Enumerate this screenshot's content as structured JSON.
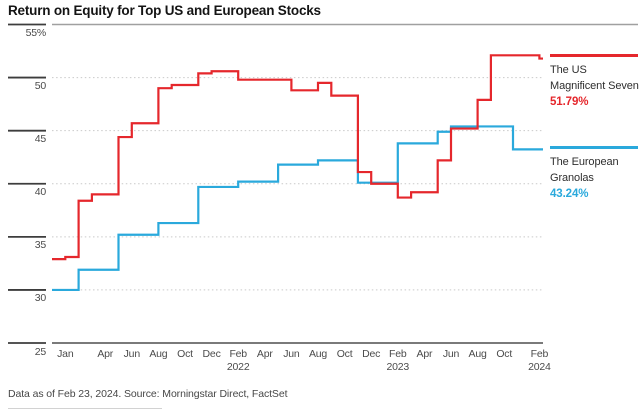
{
  "title": "Return on Equity for Top US and European Stocks",
  "footer": "Data as of Feb 23, 2024. Source: Morningstar Direct, FactSet",
  "legend": {
    "us": {
      "name": "The US Magnificent Seven",
      "value": "51.79%"
    },
    "granolas": {
      "name": "The European Granolas",
      "value": "43.24%"
    }
  },
  "colors": {
    "us_red": "#e5272c",
    "granolas_blue": "#2aa9dc",
    "grid_dotted": "#c9c9c9",
    "axis_tick_dark": "#3d3d3d",
    "top_border_gray": "#a0a0a0",
    "bottom_border_gray": "#4f4f4f",
    "label_gray": "#4b4b4b"
  },
  "chart_data": {
    "type": "line",
    "step_interpolation": true,
    "x_unit": "month",
    "months": [
      "Dec 2020",
      "Jan 2021",
      "Feb 2021",
      "Mar 2021",
      "Apr 2021",
      "May 2021",
      "Jun 2021",
      "Jul 2021",
      "Aug 2021",
      "Sep 2021",
      "Oct 2021",
      "Nov 2021",
      "Dec 2021",
      "Jan 2022",
      "Feb 2022",
      "Mar 2022",
      "Apr 2022",
      "May 2022",
      "Jun 2022",
      "Jul 2022",
      "Aug 2022",
      "Sep 2022",
      "Oct 2022",
      "Nov 2022",
      "Dec 2022",
      "Jan 2023",
      "Feb 2023",
      "Mar 2023",
      "Apr 2023",
      "May 2023",
      "Jun 2023",
      "Jul 2023",
      "Aug 2023",
      "Sep 2023",
      "Oct 2023",
      "Nov 2023",
      "Dec 2023",
      "Jan 2024",
      "Feb 2024"
    ],
    "series": [
      {
        "name": "The US Magnificent Seven",
        "final_label": "51.79%",
        "values": [
          32.9,
          33.1,
          38.4,
          39.0,
          39.0,
          44.4,
          45.7,
          45.7,
          49.0,
          49.3,
          49.3,
          50.4,
          50.6,
          50.6,
          49.8,
          49.8,
          49.8,
          49.8,
          48.8,
          48.8,
          49.5,
          48.3,
          48.3,
          41.1,
          40.0,
          40.0,
          38.7,
          39.2,
          39.2,
          42.2,
          45.2,
          45.2,
          47.9,
          52.1,
          52.1,
          52.1,
          52.1,
          52.1,
          51.79
        ]
      },
      {
        "name": "The European Granolas",
        "final_label": "43.24%",
        "values": [
          30.0,
          30.0,
          31.9,
          31.9,
          31.9,
          35.2,
          35.2,
          35.2,
          36.3,
          36.3,
          36.3,
          39.7,
          39.7,
          39.7,
          40.2,
          40.2,
          40.2,
          41.8,
          41.8,
          41.8,
          42.2,
          42.2,
          42.2,
          40.1,
          40.1,
          40.1,
          43.8,
          43.8,
          43.8,
          44.9,
          45.4,
          45.4,
          45.4,
          45.4,
          45.4,
          43.24,
          43.24,
          43.24,
          43.24
        ]
      }
    ],
    "x_ticks": [
      {
        "t": 1,
        "label": "Jan"
      },
      {
        "t": 4,
        "label": "Apr"
      },
      {
        "t": 6,
        "label": "Jun"
      },
      {
        "t": 8,
        "label": "Aug"
      },
      {
        "t": 10,
        "label": "Oct"
      },
      {
        "t": 12,
        "label": "Dec"
      },
      {
        "t": 14,
        "label": "Feb",
        "year": "2022"
      },
      {
        "t": 16,
        "label": "Apr"
      },
      {
        "t": 18,
        "label": "Jun"
      },
      {
        "t": 20,
        "label": "Aug"
      },
      {
        "t": 22,
        "label": "Oct"
      },
      {
        "t": 24,
        "label": "Dec"
      },
      {
        "t": 26,
        "label": "Feb",
        "year": "2023"
      },
      {
        "t": 28,
        "label": "Apr"
      },
      {
        "t": 30,
        "label": "Jun"
      },
      {
        "t": 32,
        "label": "Aug"
      },
      {
        "t": 34,
        "label": "Oct"
      },
      {
        "t": 38,
        "label": "Feb",
        "year": "2024"
      }
    ],
    "y_ticks": [
      {
        "v": 55,
        "label": "55%"
      },
      {
        "v": 50,
        "label": "50"
      },
      {
        "v": 45,
        "label": "45"
      },
      {
        "v": 40,
        "label": "40"
      },
      {
        "v": 35,
        "label": "35"
      },
      {
        "v": 30,
        "label": "30"
      },
      {
        "v": 25,
        "label": "25"
      }
    ],
    "ylim": [
      25,
      55
    ],
    "grid": "dotted horizontal",
    "legend_position": "right"
  }
}
